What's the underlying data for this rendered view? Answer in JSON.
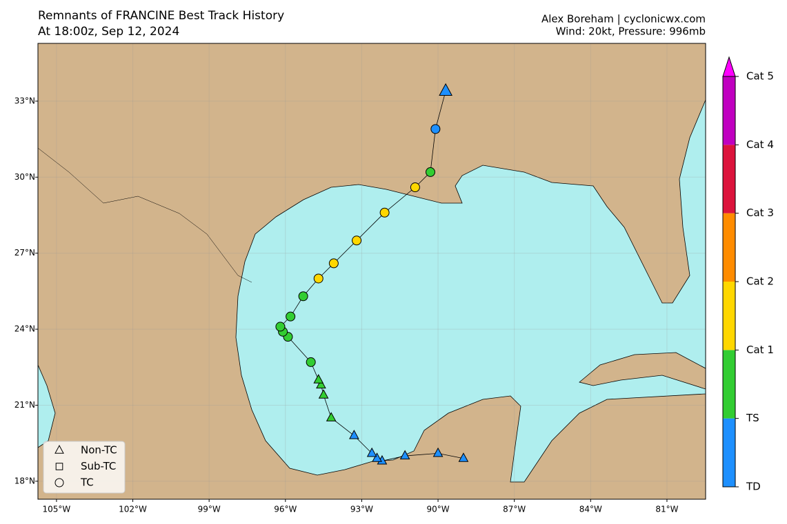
{
  "header": {
    "title": "Remnants of FRANCINE Best Track History",
    "subtitle": "At 18:00z, Sep 12, 2024",
    "credit": "Alex Boreham | cyclonicwx.com",
    "conditions": "Wind: 20kt, Pressure: 996mb"
  },
  "map": {
    "xlim": [
      -105.73,
      -79.48
    ],
    "ylim": [
      17.29,
      35.28
    ],
    "xticks": [
      {
        "value": -105,
        "label": "105°W"
      },
      {
        "value": -102,
        "label": "102°W"
      },
      {
        "value": -99,
        "label": "99°W"
      },
      {
        "value": -96,
        "label": "96°W"
      },
      {
        "value": -93,
        "label": "93°W"
      },
      {
        "value": -90,
        "label": "90°W"
      },
      {
        "value": -87,
        "label": "87°W"
      },
      {
        "value": -84,
        "label": "84°W"
      },
      {
        "value": -81,
        "label": "81°W"
      }
    ],
    "yticks": [
      {
        "value": 18,
        "label": "18°N"
      },
      {
        "value": 21,
        "label": "21°N"
      },
      {
        "value": 24,
        "label": "24°N"
      },
      {
        "value": 27,
        "label": "27°N"
      },
      {
        "value": 30,
        "label": "30°N"
      },
      {
        "value": 33,
        "label": "33°N"
      }
    ],
    "grid": true
  },
  "legend": [
    {
      "label": "Non-TC",
      "marker": "triangle"
    },
    {
      "label": "Sub-TC",
      "marker": "square"
    },
    {
      "label": "TC",
      "marker": "circle"
    }
  ],
  "colorbar": [
    {
      "label": "TD",
      "color": "#1e90ff"
    },
    {
      "label": "TS",
      "color": "#32cd32"
    },
    {
      "label": "Cat 1",
      "color": "#ffd700"
    },
    {
      "label": "Cat 2",
      "color": "#ff8c00"
    },
    {
      "label": "Cat 3",
      "color": "#dc143c"
    },
    {
      "label": "Cat 4",
      "color": "#c000c0"
    },
    {
      "label": "Cat 5",
      "color": "#ff00ff"
    }
  ],
  "track": {
    "points": [
      {
        "lon": -89.0,
        "lat": 18.9,
        "status": "Non-TC",
        "category": "TD"
      },
      {
        "lon": -90.0,
        "lat": 19.1,
        "status": "Non-TC",
        "category": "TD"
      },
      {
        "lon": -91.3,
        "lat": 19.0,
        "status": "Non-TC",
        "category": "TD"
      },
      {
        "lon": -92.2,
        "lat": 18.8,
        "status": "Non-TC",
        "category": "TD"
      },
      {
        "lon": -92.4,
        "lat": 18.9,
        "status": "Non-TC",
        "category": "TD"
      },
      {
        "lon": -92.6,
        "lat": 19.1,
        "status": "Non-TC",
        "category": "TD"
      },
      {
        "lon": -93.3,
        "lat": 19.8,
        "status": "Non-TC",
        "category": "TD"
      },
      {
        "lon": -94.2,
        "lat": 20.5,
        "status": "Non-TC",
        "category": "TS"
      },
      {
        "lon": -94.5,
        "lat": 21.4,
        "status": "Non-TC",
        "category": "TS"
      },
      {
        "lon": -94.6,
        "lat": 21.8,
        "status": "Non-TC",
        "category": "TS"
      },
      {
        "lon": -94.7,
        "lat": 22.0,
        "status": "Non-TC",
        "category": "TS"
      },
      {
        "lon": -95.0,
        "lat": 22.7,
        "status": "TC",
        "category": "TS"
      },
      {
        "lon": -95.9,
        "lat": 23.7,
        "status": "TC",
        "category": "TS"
      },
      {
        "lon": -96.1,
        "lat": 23.9,
        "status": "TC",
        "category": "TS"
      },
      {
        "lon": -96.2,
        "lat": 24.1,
        "status": "TC",
        "category": "TS"
      },
      {
        "lon": -95.8,
        "lat": 24.5,
        "status": "TC",
        "category": "TS"
      },
      {
        "lon": -95.3,
        "lat": 25.3,
        "status": "TC",
        "category": "TS"
      },
      {
        "lon": -94.7,
        "lat": 26.0,
        "status": "TC",
        "category": "Cat 1"
      },
      {
        "lon": -94.1,
        "lat": 26.6,
        "status": "TC",
        "category": "Cat 1"
      },
      {
        "lon": -93.2,
        "lat": 27.5,
        "status": "TC",
        "category": "Cat 1"
      },
      {
        "lon": -92.1,
        "lat": 28.6,
        "status": "TC",
        "category": "Cat 1"
      },
      {
        "lon": -90.9,
        "lat": 29.6,
        "status": "TC",
        "category": "Cat 1"
      },
      {
        "lon": -90.3,
        "lat": 30.2,
        "status": "TC",
        "category": "TS"
      },
      {
        "lon": -90.1,
        "lat": 31.9,
        "status": "TC",
        "category": "TD"
      },
      {
        "lon": -89.7,
        "lat": 33.4,
        "status": "Non-TC",
        "category": "TD"
      }
    ]
  }
}
